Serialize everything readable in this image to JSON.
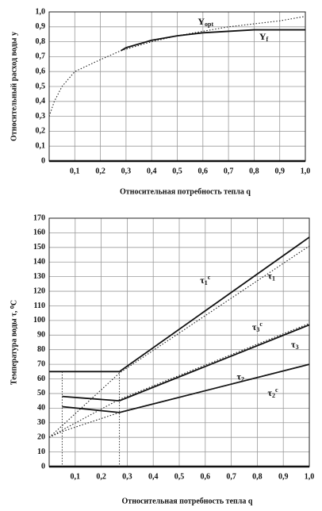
{
  "chart_data": [
    {
      "type": "line",
      "xlabel": "Относительная потребность тепла q",
      "ylabel": "Относительный расход воды у",
      "x": [
        0,
        0.02,
        0.05,
        0.1,
        0.2,
        0.28,
        0.3,
        0.4,
        0.5,
        0.6,
        0.7,
        0.8,
        0.9,
        1.0
      ],
      "series": [
        {
          "name": "Yopt",
          "color": "#222222",
          "dash": "dotted",
          "values": [
            0.3,
            0.4,
            0.5,
            0.6,
            0.68,
            0.74,
            0.75,
            0.8,
            0.84,
            0.87,
            0.9,
            0.92,
            0.94,
            0.97
          ]
        },
        {
          "name": "Yf",
          "color": "#111111",
          "dash": "solid",
          "values": [
            null,
            null,
            null,
            null,
            null,
            0.74,
            0.76,
            0.81,
            0.84,
            0.86,
            0.87,
            0.88,
            0.88,
            0.88
          ]
        }
      ],
      "xlim": [
        0,
        1.0
      ],
      "xticks": [
        {
          "value": 0.1,
          "label": "0,1"
        },
        {
          "value": 0.2,
          "label": "0,2"
        },
        {
          "value": 0.3,
          "label": "0,3"
        },
        {
          "value": 0.4,
          "label": "0,4"
        },
        {
          "value": 0.5,
          "label": "0,5"
        },
        {
          "value": 0.6,
          "label": "0,6"
        },
        {
          "value": 0.7,
          "label": "0,7"
        },
        {
          "value": 0.8,
          "label": "0,8"
        },
        {
          "value": 0.9,
          "label": "0,9"
        },
        {
          "value": 1.0,
          "label": "1,0"
        }
      ],
      "ylim": [
        0,
        1.0
      ],
      "yticks": [
        0,
        {
          "value": 0.1,
          "label": "0,1"
        },
        {
          "value": 0.2,
          "label": "0,2"
        },
        {
          "value": 0.3,
          "label": "0,3"
        },
        {
          "value": 0.4,
          "label": "0,4"
        },
        {
          "value": 0.5,
          "label": "0,5"
        },
        {
          "value": 0.6,
          "label": "0,6"
        },
        {
          "value": 0.7,
          "label": "0,7"
        },
        {
          "value": 0.8,
          "label": "0,8"
        },
        {
          "value": 0.9,
          "label": "0,9"
        },
        {
          "value": 1.0,
          "label": "1,0"
        }
      ],
      "grid": true
    },
    {
      "type": "line",
      "xlabel": "Относительная потребность тепла q",
      "ylabel": "Температура воды τ, ⁰C",
      "x": [
        0,
        0.05,
        0.27,
        1.0
      ],
      "series": [
        {
          "name": "τ1",
          "color": "#111111",
          "dash": "solid",
          "values": [
            65,
            65,
            65,
            157
          ]
        },
        {
          "name": "τ1c",
          "color": "#222222",
          "dash": "dotted",
          "values": [
            20,
            28,
            64,
            151
          ]
        },
        {
          "name": "τ3",
          "color": "#111111",
          "dash": "solid",
          "values": [
            null,
            48,
            45,
            97
          ]
        },
        {
          "name": "τ3c",
          "color": "#222222",
          "dash": "dotted",
          "values": [
            20,
            25,
            46,
            98
          ]
        },
        {
          "name": "τ2",
          "color": "#111111",
          "dash": "solid",
          "values": [
            null,
            41,
            37,
            70
          ]
        },
        {
          "name": "τ2c",
          "color": "#222222",
          "dash": "dotted",
          "values": [
            20,
            24,
            37,
            70
          ]
        }
      ],
      "vlines": [
        0.05,
        0.27
      ],
      "xlim": [
        0,
        1.0
      ],
      "xticks": [
        {
          "value": 0.1,
          "label": "0,1"
        },
        {
          "value": 0.2,
          "label": "0,2"
        },
        {
          "value": 0.3,
          "label": "0,3"
        },
        {
          "value": 0.4,
          "label": "0,4"
        },
        {
          "value": 0.5,
          "label": "0,5"
        },
        {
          "value": 0.6,
          "label": "0,6"
        },
        {
          "value": 0.7,
          "label": "0,7"
        },
        {
          "value": 0.8,
          "label": "0,8"
        },
        {
          "value": 0.9,
          "label": "0,9"
        },
        {
          "value": 1.0,
          "label": "1,0"
        }
      ],
      "ylim": [
        0,
        170
      ],
      "yticks": [
        0,
        10,
        20,
        30,
        40,
        50,
        60,
        70,
        80,
        90,
        100,
        110,
        120,
        130,
        140,
        150,
        160,
        170
      ],
      "grid": true
    }
  ]
}
